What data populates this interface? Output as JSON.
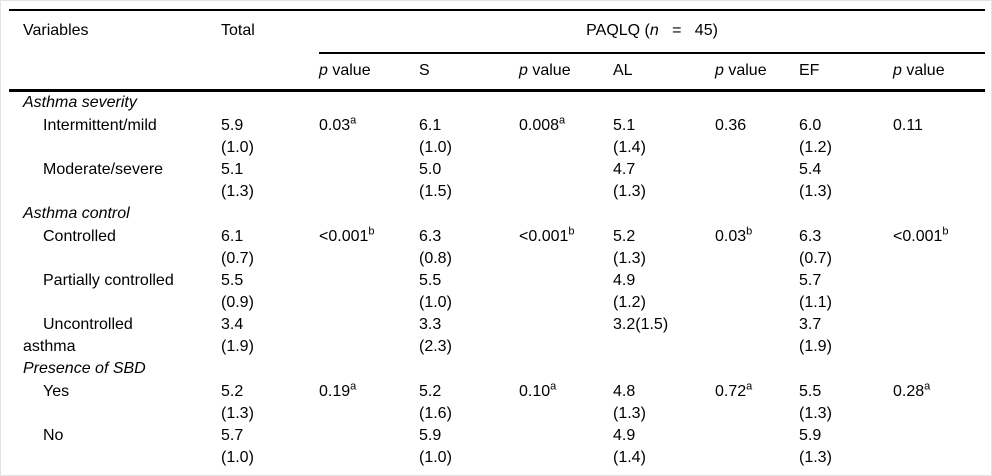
{
  "page": {
    "background": "#ffffff",
    "frame_color": "#e2e2e2",
    "text_color": "#000000",
    "rule_color": "#000000"
  },
  "table": {
    "header": {
      "variables_label": "Variables",
      "total_label": "Total",
      "spanner": {
        "prefix": "PAQLQ (",
        "n": "n",
        "rest": "   =   45)"
      },
      "subcolumns": [
        {
          "italic": "p",
          "text": " value"
        },
        {
          "italic": "",
          "text": "S"
        },
        {
          "italic": "p",
          "text": " value"
        },
        {
          "italic": "",
          "text": "AL"
        },
        {
          "italic": "p",
          "text": " value"
        },
        {
          "italic": "",
          "text": "EF"
        },
        {
          "italic": "p",
          "text": " value"
        }
      ]
    },
    "column_order": [
      "total",
      "p value",
      "S",
      "p value",
      "AL",
      "p value",
      "EF",
      "p value"
    ],
    "sections": [
      {
        "title": "Asthma severity",
        "rows": [
          {
            "label": "Intermittent/mild",
            "cells": [
              {
                "v": "5.9",
                "sd": "(1.0)"
              },
              {
                "v": "0.03",
                "sup": "a"
              },
              {
                "v": "6.1",
                "sd": "(1.0)"
              },
              {
                "v": "0.008",
                "sup": "a"
              },
              {
                "v": "5.1",
                "sd": "(1.4)"
              },
              {
                "v": "0.36"
              },
              {
                "v": "6.0",
                "sd": "(1.2)"
              },
              {
                "v": "0.11"
              }
            ]
          },
          {
            "label": "Moderate/severe",
            "cells": [
              {
                "v": "5.1",
                "sd": "(1.3)"
              },
              null,
              {
                "v": "5.0",
                "sd": "(1.5)"
              },
              null,
              {
                "v": "4.7",
                "sd": "(1.3)"
              },
              null,
              {
                "v": "5.4",
                "sd": "(1.3)"
              },
              null
            ]
          }
        ]
      },
      {
        "title": "Asthma control",
        "rows": [
          {
            "label": "Controlled",
            "cells": [
              {
                "v": "6.1",
                "sd": "(0.7)"
              },
              {
                "v": "<0.001",
                "sup": "b"
              },
              {
                "v": "6.3",
                "sd": "(0.8)"
              },
              {
                "v": "<0.001",
                "sup": "b"
              },
              {
                "v": "5.2",
                "sd": "(1.3)"
              },
              {
                "v": "0.03",
                "sup": "b"
              },
              {
                "v": "6.3",
                "sd": "(0.7)"
              },
              {
                "v": "<0.001",
                "sup": "b"
              }
            ]
          },
          {
            "label": "Partially controlled",
            "cells": [
              {
                "v": "5.5",
                "sd": "(0.9)"
              },
              null,
              {
                "v": "5.5",
                "sd": "(1.0)"
              },
              null,
              {
                "v": "4.9",
                "sd": "(1.2)"
              },
              null,
              {
                "v": "5.7",
                "sd": "(1.1)"
              },
              null
            ]
          },
          {
            "label": "Uncontrolled",
            "label_wrap": "asthma",
            "cells": [
              {
                "v": "3.4",
                "sd": "(1.9)"
              },
              null,
              {
                "v": "3.3",
                "sd": "(2.3)"
              },
              null,
              {
                "v": "3.2(1.5)"
              },
              null,
              {
                "v": "3.7",
                "sd": "(1.9)"
              },
              null
            ]
          }
        ]
      },
      {
        "title": "Presence of SBD",
        "rows": [
          {
            "label": "Yes",
            "cells": [
              {
                "v": "5.2",
                "sd": "(1.3)"
              },
              {
                "v": "0.19",
                "sup": "a"
              },
              {
                "v": "5.2",
                "sd": "(1.6)"
              },
              {
                "v": "0.10",
                "sup": "a"
              },
              {
                "v": "4.8",
                "sd": "(1.3)"
              },
              {
                "v": "0.72",
                "sup": "a"
              },
              {
                "v": "5.5",
                "sd": "(1.3)"
              },
              {
                "v": "0.28",
                "sup": "a"
              }
            ]
          },
          {
            "label": "No",
            "cells": [
              {
                "v": "5.7",
                "sd": "(1.0)"
              },
              null,
              {
                "v": "5.9",
                "sd": "(1.0)"
              },
              null,
              {
                "v": "4.9",
                "sd": "(1.4)"
              },
              null,
              {
                "v": "5.9",
                "sd": "(1.3)"
              },
              null
            ]
          }
        ]
      }
    ]
  }
}
